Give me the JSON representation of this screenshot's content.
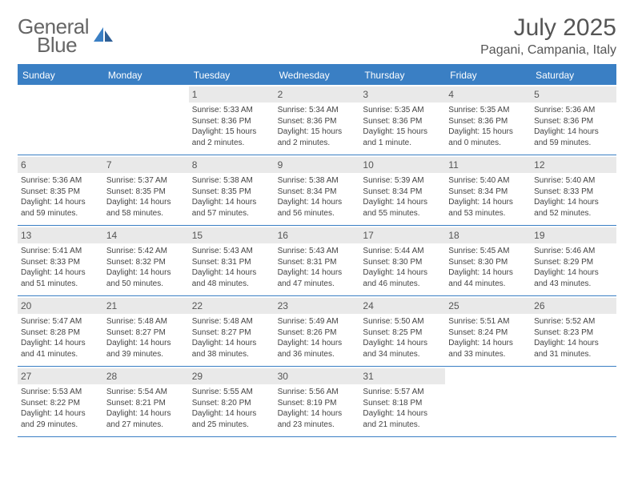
{
  "logo": {
    "line1": "General",
    "line2": "Blue"
  },
  "title": "July 2025",
  "location": "Pagani, Campania, Italy",
  "colors": {
    "header_bg": "#3a7fc4",
    "daynum_bg": "#e9e9e9",
    "text": "#444444",
    "logo_gray": "#666666",
    "logo_blue": "#3a7fc4"
  },
  "daysOfWeek": [
    "Sunday",
    "Monday",
    "Tuesday",
    "Wednesday",
    "Thursday",
    "Friday",
    "Saturday"
  ],
  "startOffset": 2,
  "days": [
    {
      "n": 1,
      "rise": "5:33 AM",
      "set": "8:36 PM",
      "dl": "15 hours and 2 minutes."
    },
    {
      "n": 2,
      "rise": "5:34 AM",
      "set": "8:36 PM",
      "dl": "15 hours and 2 minutes."
    },
    {
      "n": 3,
      "rise": "5:35 AM",
      "set": "8:36 PM",
      "dl": "15 hours and 1 minute."
    },
    {
      "n": 4,
      "rise": "5:35 AM",
      "set": "8:36 PM",
      "dl": "15 hours and 0 minutes."
    },
    {
      "n": 5,
      "rise": "5:36 AM",
      "set": "8:36 PM",
      "dl": "14 hours and 59 minutes."
    },
    {
      "n": 6,
      "rise": "5:36 AM",
      "set": "8:35 PM",
      "dl": "14 hours and 59 minutes."
    },
    {
      "n": 7,
      "rise": "5:37 AM",
      "set": "8:35 PM",
      "dl": "14 hours and 58 minutes."
    },
    {
      "n": 8,
      "rise": "5:38 AM",
      "set": "8:35 PM",
      "dl": "14 hours and 57 minutes."
    },
    {
      "n": 9,
      "rise": "5:38 AM",
      "set": "8:34 PM",
      "dl": "14 hours and 56 minutes."
    },
    {
      "n": 10,
      "rise": "5:39 AM",
      "set": "8:34 PM",
      "dl": "14 hours and 55 minutes."
    },
    {
      "n": 11,
      "rise": "5:40 AM",
      "set": "8:34 PM",
      "dl": "14 hours and 53 minutes."
    },
    {
      "n": 12,
      "rise": "5:40 AM",
      "set": "8:33 PM",
      "dl": "14 hours and 52 minutes."
    },
    {
      "n": 13,
      "rise": "5:41 AM",
      "set": "8:33 PM",
      "dl": "14 hours and 51 minutes."
    },
    {
      "n": 14,
      "rise": "5:42 AM",
      "set": "8:32 PM",
      "dl": "14 hours and 50 minutes."
    },
    {
      "n": 15,
      "rise": "5:43 AM",
      "set": "8:31 PM",
      "dl": "14 hours and 48 minutes."
    },
    {
      "n": 16,
      "rise": "5:43 AM",
      "set": "8:31 PM",
      "dl": "14 hours and 47 minutes."
    },
    {
      "n": 17,
      "rise": "5:44 AM",
      "set": "8:30 PM",
      "dl": "14 hours and 46 minutes."
    },
    {
      "n": 18,
      "rise": "5:45 AM",
      "set": "8:30 PM",
      "dl": "14 hours and 44 minutes."
    },
    {
      "n": 19,
      "rise": "5:46 AM",
      "set": "8:29 PM",
      "dl": "14 hours and 43 minutes."
    },
    {
      "n": 20,
      "rise": "5:47 AM",
      "set": "8:28 PM",
      "dl": "14 hours and 41 minutes."
    },
    {
      "n": 21,
      "rise": "5:48 AM",
      "set": "8:27 PM",
      "dl": "14 hours and 39 minutes."
    },
    {
      "n": 22,
      "rise": "5:48 AM",
      "set": "8:27 PM",
      "dl": "14 hours and 38 minutes."
    },
    {
      "n": 23,
      "rise": "5:49 AM",
      "set": "8:26 PM",
      "dl": "14 hours and 36 minutes."
    },
    {
      "n": 24,
      "rise": "5:50 AM",
      "set": "8:25 PM",
      "dl": "14 hours and 34 minutes."
    },
    {
      "n": 25,
      "rise": "5:51 AM",
      "set": "8:24 PM",
      "dl": "14 hours and 33 minutes."
    },
    {
      "n": 26,
      "rise": "5:52 AM",
      "set": "8:23 PM",
      "dl": "14 hours and 31 minutes."
    },
    {
      "n": 27,
      "rise": "5:53 AM",
      "set": "8:22 PM",
      "dl": "14 hours and 29 minutes."
    },
    {
      "n": 28,
      "rise": "5:54 AM",
      "set": "8:21 PM",
      "dl": "14 hours and 27 minutes."
    },
    {
      "n": 29,
      "rise": "5:55 AM",
      "set": "8:20 PM",
      "dl": "14 hours and 25 minutes."
    },
    {
      "n": 30,
      "rise": "5:56 AM",
      "set": "8:19 PM",
      "dl": "14 hours and 23 minutes."
    },
    {
      "n": 31,
      "rise": "5:57 AM",
      "set": "8:18 PM",
      "dl": "14 hours and 21 minutes."
    }
  ],
  "labels": {
    "sunrise": "Sunrise:",
    "sunset": "Sunset:",
    "daylight": "Daylight:"
  }
}
